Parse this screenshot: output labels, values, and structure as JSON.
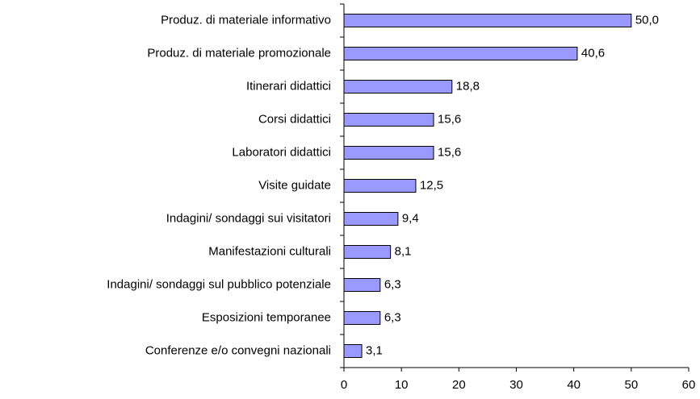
{
  "chart_data": {
    "type": "bar",
    "orientation": "horizontal",
    "categories": [
      "Produz. di materiale informativo",
      "Produz. di materiale promozionale",
      "Itinerari didattici",
      "Corsi didattici",
      "Laboratori didattici",
      "Visite guidate",
      "Indagini/ sondaggi sui visitatori",
      "Manifestazioni culturali",
      "Indagini/ sondaggi sul pubblico potenziale",
      "Esposizioni temporanee",
      "Conferenze e/o convegni nazionali"
    ],
    "values": [
      50.0,
      40.6,
      18.8,
      15.6,
      15.6,
      12.5,
      9.4,
      8.1,
      6.3,
      6.3,
      3.1
    ],
    "value_labels": [
      "50,0",
      "40,6",
      "18,8",
      "15,6",
      "15,6",
      "12,5",
      "9,4",
      "8,1",
      "6,3",
      "6,3",
      "3,1"
    ],
    "color": "#9999ff",
    "xlim": [
      0,
      60
    ],
    "xticks": [
      0,
      10,
      20,
      30,
      40,
      50,
      60
    ]
  }
}
